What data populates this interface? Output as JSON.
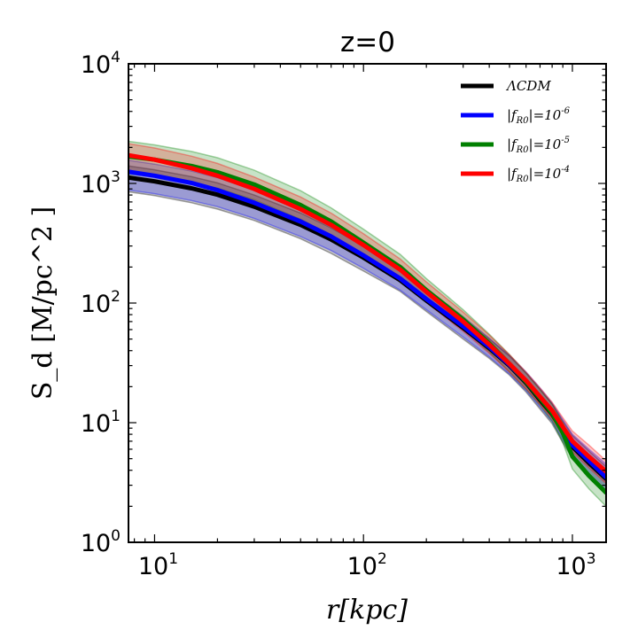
{
  "chart_data": {
    "type": "line",
    "title": "z=0",
    "xlabel": "r[kpc]",
    "ylabel": "S_d [M/pc^2 ]",
    "xscale": "log",
    "yscale": "log",
    "xlim": [
      7.5,
      1450
    ],
    "ylim": [
      1,
      10000
    ],
    "x_ticks": [
      {
        "value": 10,
        "base": "10",
        "exp": "1"
      },
      {
        "value": 100,
        "base": "10",
        "exp": "2"
      },
      {
        "value": 1000,
        "base": "10",
        "exp": "3"
      }
    ],
    "y_ticks": [
      {
        "value": 1,
        "base": "10",
        "exp": "0"
      },
      {
        "value": 10,
        "base": "10",
        "exp": "1"
      },
      {
        "value": 100,
        "base": "10",
        "exp": "2"
      },
      {
        "value": 1000,
        "base": "10",
        "exp": "3"
      },
      {
        "value": 10000,
        "base": "10",
        "exp": "4"
      }
    ],
    "legend_position": "top-right",
    "x": [
      7.5,
      10,
      15,
      20,
      30,
      50,
      70,
      100,
      150,
      200,
      300,
      400,
      500,
      600,
      700,
      800,
      900,
      1000,
      1200,
      1450
    ],
    "series": [
      {
        "name": "ΛCDM",
        "color": "#000000",
        "values": [
          1120,
          1040,
          910,
          805,
          640,
          450,
          340,
          240,
          155,
          105,
          62,
          42,
          30,
          21.5,
          15.5,
          11.8,
          8.4,
          6.3,
          4.6,
          3.4
        ],
        "band_low": [
          850,
          790,
          690,
          610,
          490,
          345,
          260,
          185,
          125,
          85,
          50,
          34.5,
          25,
          18,
          13,
          9.8,
          6.8,
          5.0,
          3.6,
          2.6
        ],
        "band_high": [
          1400,
          1300,
          1140,
          1010,
          800,
          565,
          425,
          300,
          195,
          130,
          75,
          50,
          36,
          26,
          19,
          14.3,
          10.3,
          7.8,
          5.8,
          4.3
        ]
      },
      {
        "name": "|f_R0|=10^-6",
        "color": "#0000ff",
        "values": [
          1250,
          1160,
          1010,
          880,
          690,
          480,
          360,
          250,
          160,
          108,
          64,
          43,
          30.5,
          22,
          16,
          12.2,
          8.8,
          6.5,
          4.8,
          3.5
        ],
        "band_low": [
          880,
          820,
          720,
          640,
          510,
          360,
          275,
          195,
          128,
          88,
          52,
          35.5,
          25.5,
          18.5,
          13.5,
          10.2,
          7.2,
          5.2,
          3.7,
          2.7
        ],
        "band_high": [
          1560,
          1450,
          1270,
          1120,
          880,
          610,
          455,
          315,
          200,
          132,
          77,
          51,
          36.5,
          26.5,
          19.5,
          14.6,
          10.6,
          8.0,
          6.0,
          4.5
        ]
      },
      {
        "name": "|f_R0|=10^-5",
        "color": "#008000",
        "values": [
          1680,
          1580,
          1400,
          1240,
          980,
          660,
          480,
          320,
          200,
          128,
          73,
          46,
          31,
          22,
          16,
          12,
          8.2,
          5.2,
          3.6,
          2.6
        ],
        "band_low": [
          1200,
          1140,
          1020,
          910,
          730,
          500,
          370,
          250,
          160,
          105,
          61,
          39,
          26.5,
          19,
          14,
          10.3,
          6.8,
          4.1,
          2.8,
          2.0
        ],
        "band_high": [
          2250,
          2100,
          1850,
          1640,
          1290,
          870,
          625,
          415,
          255,
          160,
          88,
          55,
          37,
          26,
          19,
          14.3,
          10,
          6.6,
          4.7,
          3.5
        ]
      },
      {
        "name": "|f_R0|=10^-4",
        "color": "#ff0000",
        "values": [
          1720,
          1580,
          1340,
          1160,
          900,
          610,
          450,
          305,
          190,
          124,
          70,
          45,
          31,
          22.5,
          16.5,
          12.6,
          9.2,
          7.0,
          5.2,
          3.9
        ],
        "band_low": [
          1250,
          1160,
          1000,
          870,
          690,
          470,
          350,
          240,
          153,
          101,
          58,
          38,
          26.5,
          19.2,
          14.2,
          10.8,
          7.7,
          5.7,
          4.2,
          3.1
        ],
        "band_high": [
          2150,
          1980,
          1690,
          1470,
          1130,
          770,
          565,
          380,
          233,
          150,
          84,
          54,
          37,
          26.5,
          19.5,
          14.8,
          11,
          8.5,
          6.5,
          4.8
        ]
      }
    ],
    "legend": [
      {
        "label": "ΛCDM",
        "color": "#000000"
      },
      {
        "label": "|f_R0|=10^-6",
        "color": "#0000ff"
      },
      {
        "label": "|f_R0|=10^-5",
        "color": "#008000"
      },
      {
        "label": "|f_R0|=10^-4",
        "color": "#ff0000"
      }
    ]
  }
}
